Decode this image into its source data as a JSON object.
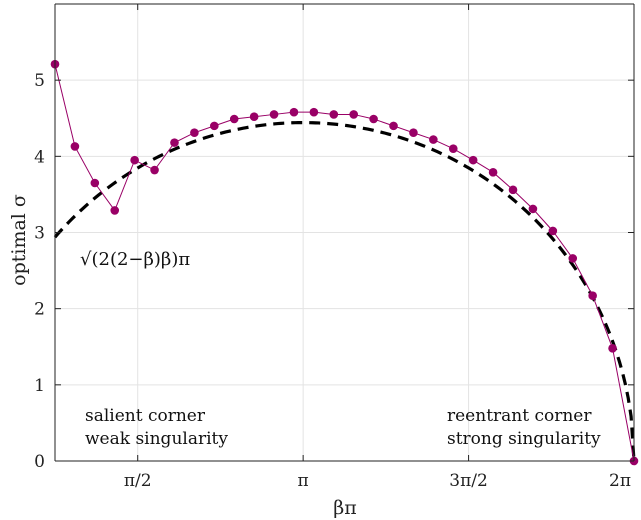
{
  "chart_data": {
    "type": "line",
    "xlabel": "βπ",
    "ylabel": "optimal σ",
    "xlim": [
      0.7854,
      6.2832
    ],
    "ylim": [
      0,
      6
    ],
    "grid": true,
    "x_ticks": [
      {
        "value": 1.5708,
        "label": "π/2"
      },
      {
        "value": 3.1416,
        "label": "π"
      },
      {
        "value": 4.7124,
        "label": "3π/2"
      },
      {
        "value": 6.2832,
        "label": "2π"
      }
    ],
    "y_ticks": [
      {
        "value": 0,
        "label": "0"
      },
      {
        "value": 1,
        "label": "1"
      },
      {
        "value": 2,
        "label": "2"
      },
      {
        "value": 3,
        "label": "3"
      },
      {
        "value": 4,
        "label": "4"
      },
      {
        "value": 5,
        "label": "5"
      }
    ],
    "series": [
      {
        "style": "line-markers",
        "color": "#990066",
        "x": [
          0.7854,
          0.9745,
          1.1636,
          1.3526,
          1.5417,
          1.7308,
          1.9199,
          2.109,
          2.2981,
          2.4871,
          2.6762,
          2.8653,
          3.0544,
          3.2435,
          3.4326,
          3.6216,
          3.8107,
          3.9998,
          4.1889,
          4.378,
          4.5671,
          4.7562,
          4.9452,
          5.1343,
          5.3234,
          5.5125,
          5.7016,
          5.8907,
          6.0797,
          6.2832
        ],
        "y": [
          5.21,
          4.13,
          3.65,
          3.29,
          3.95,
          3.82,
          4.18,
          4.31,
          4.4,
          4.49,
          4.52,
          4.55,
          4.58,
          4.58,
          4.55,
          4.55,
          4.49,
          4.4,
          4.31,
          4.22,
          4.1,
          3.95,
          3.79,
          3.56,
          3.31,
          3.02,
          2.66,
          2.17,
          1.48,
          0.0
        ]
      },
      {
        "name": "√(2(2−β)β)π",
        "style": "dashed",
        "color": "#000000",
        "formula": "sqrt(2*(2-beta)*beta)*pi"
      }
    ],
    "annotations": [
      {
        "lines": [
          "salient corner",
          "weak singularity"
        ]
      },
      {
        "lines": [
          "reentrant corner",
          "strong singularity"
        ]
      }
    ]
  }
}
